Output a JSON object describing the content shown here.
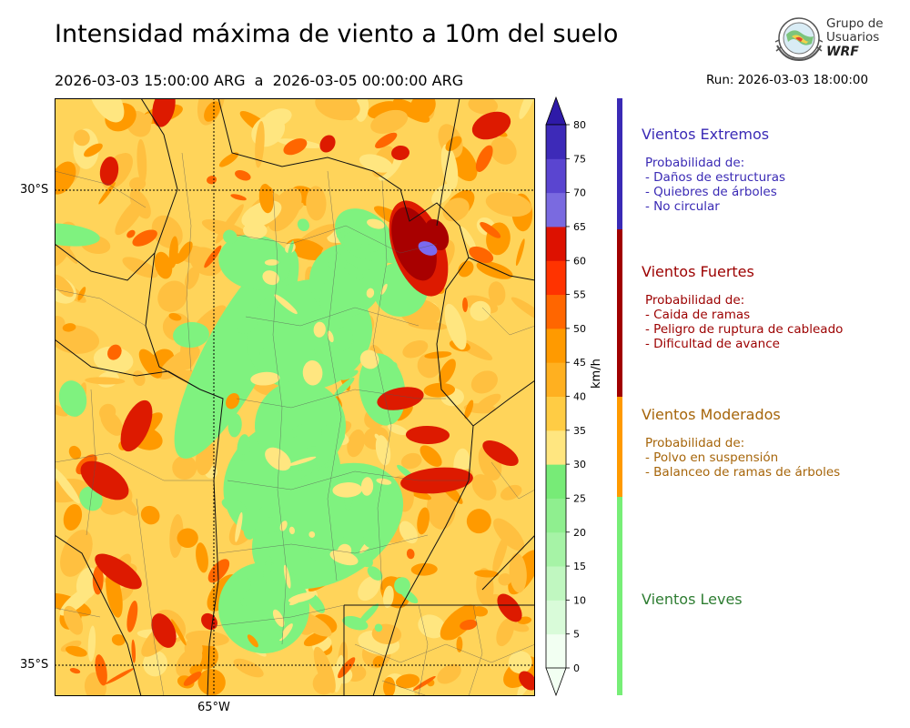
{
  "title": "Intensidad máxima de viento a 10m del suelo",
  "period": {
    "start": "2026-03-03 15:00:00 ARG",
    "separator": "a",
    "end": "2026-03-05 00:00:00 ARG"
  },
  "run": "Run: 2026-03-03 18:00:00",
  "logo": {
    "line1": "Grupo de",
    "line2": "Usuarios",
    "line3": "WRF"
  },
  "map": {
    "lat_labels": [
      "30°S",
      "35°S"
    ],
    "lon_labels": [
      "65°W"
    ],
    "colors": {
      "light_green": "#7ff27f",
      "pale_yellow": "#ffe680",
      "yellow": "#ffc040",
      "orange": "#ff9a00",
      "dark_orange": "#ff6600",
      "red": "#dd1a00",
      "dark_red": "#a80000",
      "blue_violet": "#7a6af0"
    }
  },
  "colorbar": {
    "unit": "km/h",
    "ticks": [
      "0",
      "5",
      "10",
      "15",
      "20",
      "25",
      "30",
      "35",
      "40",
      "45",
      "50",
      "55",
      "60",
      "65",
      "70",
      "75",
      "80"
    ],
    "colors": [
      "#f2fff2",
      "#d9fbd9",
      "#c0f7c0",
      "#a6f3a6",
      "#8fef8f",
      "#77eb77",
      "#ffe680",
      "#ffcc44",
      "#ffb020",
      "#ff9a00",
      "#ff6600",
      "#ff3300",
      "#dd1100",
      "#b80000",
      "#a00000",
      "#7a6ae0",
      "#5a45d0",
      "#3d2ab8",
      "#2e1aa8"
    ]
  },
  "categories": [
    {
      "title": "Vientos Extremos",
      "color": "#3a2ab5",
      "lines": [
        "Probabilidad de:",
        "- Daños de estructuras",
        "- Quiebres de árboles",
        "- No circular"
      ]
    },
    {
      "title": "Vientos Fuertes",
      "color": "#9c0000",
      "lines": [
        "Probabilidad de:",
        "- Caida de ramas",
        "- Peligro de ruptura de cableado",
        "- Dificultad de avance"
      ]
    },
    {
      "title": "Vientos Moderados",
      "color": "#a6650a",
      "lines": [
        "Probabilidad de:",
        "- Polvo en suspensión",
        "- Balanceo de ramas de árboles"
      ]
    },
    {
      "title": "Vientos Leves",
      "color": "#2e7d32",
      "lines": []
    }
  ],
  "bands": [
    "#3a2ab5",
    "#a00000",
    "#ff9a00",
    "#77ee77"
  ]
}
